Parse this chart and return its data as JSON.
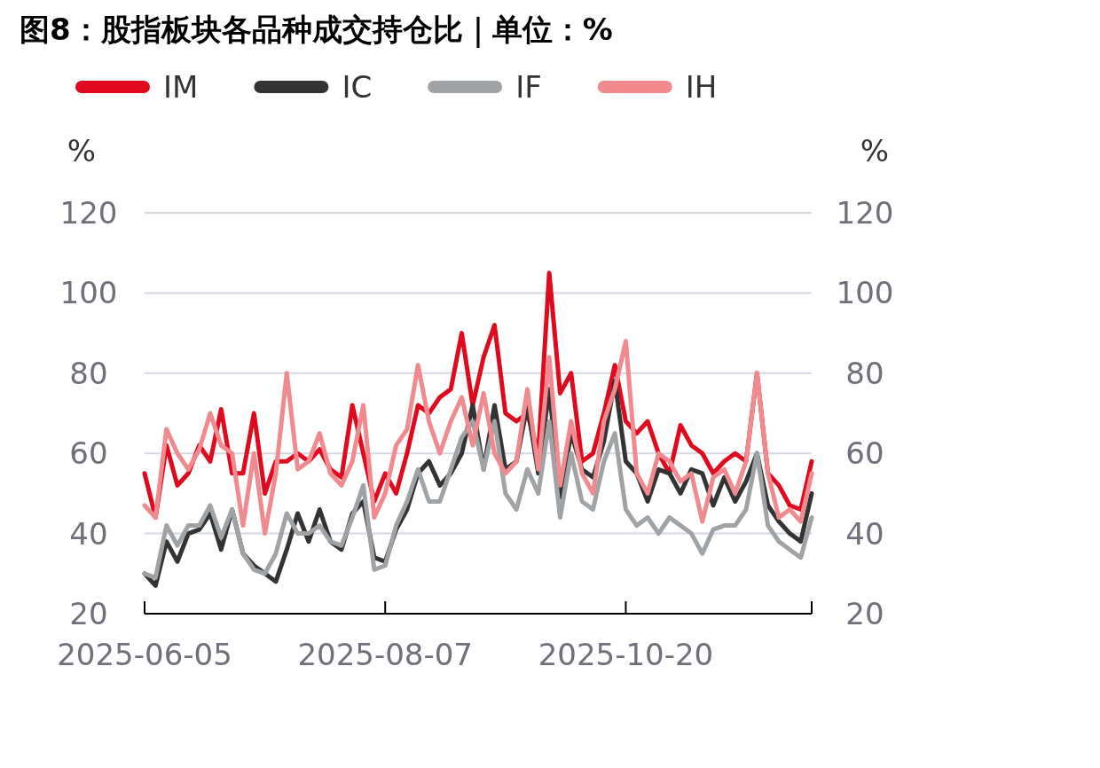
{
  "chart_data": {
    "type": "line",
    "title": "图8：股指板块各品种成交持仓比｜单位：%",
    "ylabel": "%",
    "y2label": "%",
    "categories": [
      "2025-06-05",
      null,
      null,
      null,
      null,
      null,
      null,
      null,
      null,
      null,
      null,
      null,
      null,
      null,
      null,
      null,
      null,
      null,
      null,
      null,
      null,
      null,
      "2025-08-07",
      null,
      null,
      null,
      null,
      null,
      null,
      null,
      null,
      null,
      null,
      null,
      null,
      null,
      null,
      null,
      null,
      null,
      null,
      null,
      null,
      null,
      "2025-10-20",
      null,
      null,
      null,
      null,
      null,
      null,
      null,
      null,
      null,
      null,
      null,
      null,
      null,
      null,
      null,
      null,
      null
    ],
    "ylim": [
      20,
      120
    ],
    "yticks": [
      20,
      40,
      60,
      80,
      100,
      120
    ],
    "y2lim": [
      20,
      120
    ],
    "y2ticks": [
      20,
      40,
      60,
      80,
      100,
      120
    ],
    "grid": "y",
    "legend": "top left",
    "marker": "none",
    "line_style": "solid",
    "series": [
      {
        "name": "IM",
        "color": "#e00a1e",
        "values": [
          55,
          44,
          62,
          52,
          55,
          62,
          58,
          71,
          55,
          55,
          70,
          50,
          58,
          58,
          60,
          58,
          61,
          56,
          54,
          72,
          60,
          48,
          55,
          50,
          60,
          72,
          70,
          74,
          76,
          90,
          72,
          84,
          92,
          70,
          68,
          70,
          60,
          105,
          75,
          80,
          58,
          60,
          70,
          82,
          68,
          65,
          68,
          60,
          55,
          67,
          62,
          60,
          55,
          58,
          60,
          58,
          80,
          55,
          52,
          47,
          46,
          58
        ]
      },
      {
        "name": "IC",
        "color": "#333333",
        "values": [
          30,
          27,
          38,
          33,
          40,
          41,
          45,
          36,
          46,
          35,
          32,
          30,
          28,
          36,
          45,
          38,
          46,
          38,
          36,
          45,
          48,
          34,
          33,
          41,
          46,
          55,
          58,
          52,
          55,
          60,
          72,
          56,
          72,
          56,
          58,
          72,
          55,
          76,
          49,
          65,
          56,
          54,
          63,
          78,
          58,
          55,
          48,
          56,
          55,
          50,
          56,
          55,
          47,
          54,
          48,
          53,
          60,
          47,
          43,
          40,
          38,
          50
        ]
      },
      {
        "name": "IF",
        "color": "#a0a3a6",
        "values": [
          30,
          29,
          42,
          37,
          42,
          42,
          47,
          39,
          46,
          35,
          31,
          30,
          35,
          45,
          40,
          40,
          42,
          38,
          37,
          44,
          52,
          31,
          32,
          42,
          48,
          56,
          48,
          48,
          56,
          64,
          68,
          56,
          68,
          50,
          46,
          56,
          50,
          68,
          44,
          60,
          48,
          46,
          58,
          65,
          46,
          42,
          44,
          40,
          44,
          42,
          40,
          35,
          41,
          42,
          42,
          46,
          60,
          42,
          38,
          36,
          34,
          44
        ]
      },
      {
        "name": "IH",
        "color": "#f08a8f",
        "values": [
          47,
          44,
          66,
          60,
          56,
          61,
          70,
          62,
          60,
          42,
          60,
          40,
          55,
          80,
          56,
          58,
          65,
          55,
          52,
          58,
          72,
          44,
          50,
          62,
          66,
          82,
          68,
          60,
          68,
          74,
          62,
          75,
          60,
          55,
          58,
          76,
          56,
          84,
          52,
          68,
          55,
          50,
          68,
          76,
          88,
          55,
          50,
          60,
          58,
          53,
          55,
          43,
          54,
          56,
          50,
          58,
          80,
          55,
          44,
          46,
          43,
          55
        ]
      }
    ]
  }
}
